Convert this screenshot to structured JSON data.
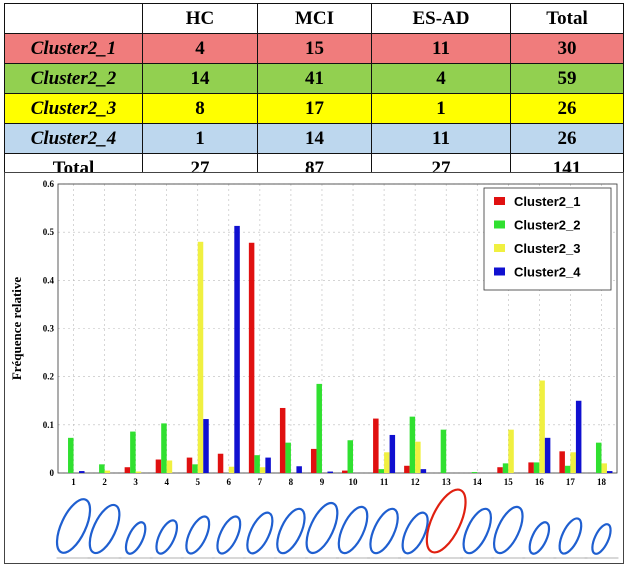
{
  "table": {
    "header": [
      "",
      "HC",
      "MCI",
      "ES-AD",
      "Total"
    ],
    "rows": [
      {
        "label": "Cluster2_1",
        "hc": "4",
        "mci": "15",
        "esad": "11",
        "total": "30",
        "color": "#f07c7c"
      },
      {
        "label": "Cluster2_2",
        "hc": "14",
        "mci": "41",
        "esad": "4",
        "total": "59",
        "color": "#92d050"
      },
      {
        "label": "Cluster2_3",
        "hc": "8",
        "mci": "17",
        "esad": "1",
        "total": "26",
        "color": "#ffff00"
      },
      {
        "label": "Cluster2_4",
        "hc": "1",
        "mci": "14",
        "esad": "11",
        "total": "26",
        "color": "#bdd7ee"
      },
      {
        "label": "Total",
        "hc": "27",
        "mci": "87",
        "esad": "27",
        "total": "141",
        "color": "#ffffff"
      }
    ]
  },
  "chart_data": {
    "type": "bar",
    "ylabel": "Fréquence relative",
    "xlabel": "",
    "ylim": [
      0,
      0.6
    ],
    "yticks": [
      "0",
      "0.1",
      "0.2",
      "0.3",
      "0.4",
      "0.5",
      "0.6"
    ],
    "categories": [
      "1",
      "2",
      "3",
      "4",
      "5",
      "6",
      "7",
      "8",
      "9",
      "10",
      "11",
      "12",
      "13",
      "14",
      "15",
      "16",
      "17",
      "18"
    ],
    "grid": true,
    "legend_position": "top-right",
    "series": [
      {
        "name": "Cluster2_1",
        "color": "#e01010",
        "values": [
          0.0,
          0.0,
          0.012,
          0.028,
          0.032,
          0.04,
          0.478,
          0.135,
          0.05,
          0.005,
          0.113,
          0.015,
          0.0,
          0.0,
          0.012,
          0.022,
          0.045,
          0.0
        ]
      },
      {
        "name": "Cluster2_2",
        "color": "#30e030",
        "values": [
          0.073,
          0.018,
          0.086,
          0.103,
          0.018,
          0.0,
          0.037,
          0.063,
          0.185,
          0.068,
          0.008,
          0.117,
          0.09,
          0.002,
          0.02,
          0.022,
          0.015,
          0.063
        ]
      },
      {
        "name": "Cluster2_3",
        "color": "#f0f040",
        "values": [
          0.0,
          0.005,
          0.003,
          0.026,
          0.48,
          0.013,
          0.012,
          0.0,
          0.0,
          0.0,
          0.043,
          0.065,
          0.0,
          0.0,
          0.09,
          0.192,
          0.043,
          0.02
        ]
      },
      {
        "name": "Cluster2_4",
        "color": "#1010d0",
        "values": [
          0.004,
          0.0,
          0.0,
          0.0,
          0.112,
          0.513,
          0.032,
          0.014,
          0.003,
          0.0,
          0.079,
          0.008,
          0.0,
          0.0,
          0.0,
          0.073,
          0.15,
          0.004
        ]
      }
    ]
  },
  "shapes": {
    "count": 18,
    "stroke_colors": [
      "#1f5fd0",
      "#1f5fd0",
      "#1f5fd0",
      "#1f5fd0",
      "#1f5fd0",
      "#1f5fd0",
      "#1f5fd0",
      "#1f5fd0",
      "#1f5fd0",
      "#1f5fd0",
      "#1f5fd0",
      "#1f5fd0",
      "#e02010",
      "#1f5fd0",
      "#1f5fd0",
      "#1f5fd0",
      "#1f5fd0",
      "#1f5fd0"
    ]
  }
}
